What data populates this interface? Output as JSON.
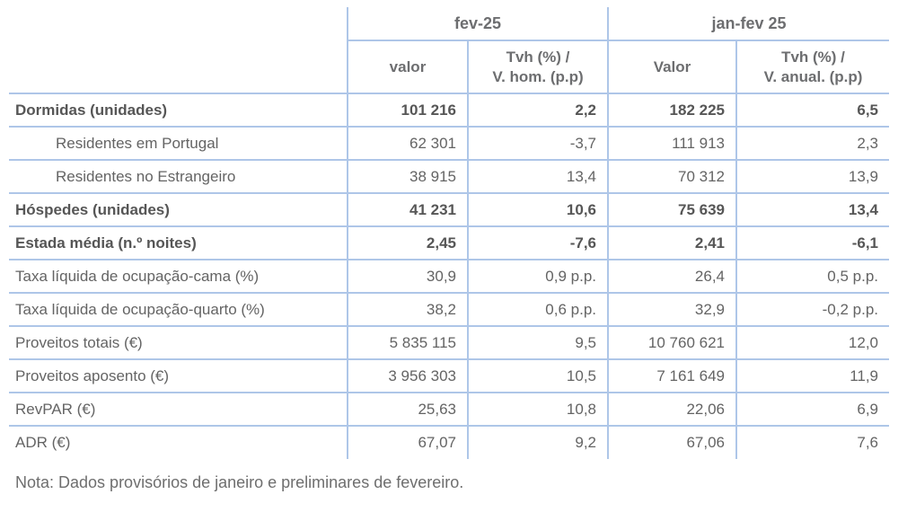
{
  "table": {
    "column_groups": [
      {
        "label": "fev-25"
      },
      {
        "label": "jan-fev 25"
      }
    ],
    "sub_headers": [
      {
        "label": "valor"
      },
      {
        "label": "Tvh (%) /\nV. hom. (p.p)"
      },
      {
        "label": "Valor"
      },
      {
        "label": "Tvh (%) /\nV. anual. (p.p)"
      }
    ],
    "rows": [
      {
        "label": "Dormidas (unidades)",
        "bold": true,
        "indent": false,
        "values": [
          "101 216",
          "2,2",
          "182 225",
          "6,5"
        ]
      },
      {
        "label": "Residentes em Portugal",
        "bold": false,
        "indent": true,
        "values": [
          "62 301",
          "-3,7",
          "111 913",
          "2,3"
        ]
      },
      {
        "label": "Residentes no Estrangeiro",
        "bold": false,
        "indent": true,
        "values": [
          "38 915",
          "13,4",
          "70 312",
          "13,9"
        ]
      },
      {
        "label": "Hóspedes (unidades)",
        "bold": true,
        "indent": false,
        "values": [
          "41 231",
          "10,6",
          "75 639",
          "13,4"
        ]
      },
      {
        "label": "Estada média (n.º noites)",
        "bold": true,
        "indent": false,
        "values": [
          "2,45",
          "-7,6",
          "2,41",
          "-6,1"
        ]
      },
      {
        "label": "Taxa líquida de ocupação-cama (%)",
        "bold": false,
        "indent": false,
        "values": [
          "30,9",
          "0,9 p.p.",
          "26,4",
          "0,5 p.p."
        ]
      },
      {
        "label": "Taxa líquida de ocupação-quarto (%)",
        "bold": false,
        "indent": false,
        "values": [
          "38,2",
          "0,6 p.p.",
          "32,9",
          "-0,2 p.p."
        ]
      },
      {
        "label": "Proveitos totais (€)",
        "bold": false,
        "indent": false,
        "values": [
          "5 835 115",
          "9,5",
          "10 760 621",
          "12,0"
        ]
      },
      {
        "label": "Proveitos aposento (€)",
        "bold": false,
        "indent": false,
        "values": [
          "3 956 303",
          "10,5",
          "7 161 649",
          "11,9"
        ]
      },
      {
        "label": "RevPAR (€)",
        "bold": false,
        "indent": false,
        "values": [
          "25,63",
          "10,8",
          "22,06",
          "6,9"
        ]
      },
      {
        "label": "ADR (€)",
        "bold": false,
        "indent": false,
        "values": [
          "67,07",
          "9,2",
          "67,06",
          "7,6"
        ]
      }
    ]
  },
  "note": "Nota: Dados provisórios de janeiro e preliminares de fevereiro.",
  "colors": {
    "border": "#aec6e8",
    "text": "#646464",
    "header_text": "#6d6e70"
  }
}
